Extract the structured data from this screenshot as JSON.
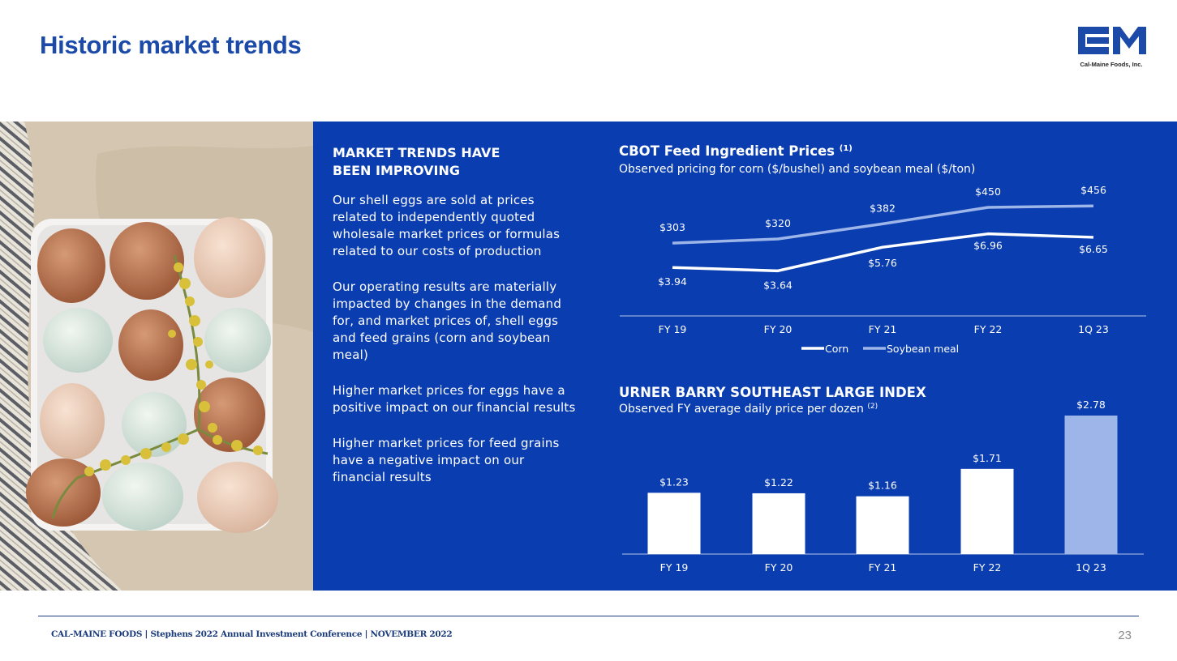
{
  "slide": {
    "title": "Historic market trends",
    "logo_text": "Cal-Maine Foods, Inc.",
    "page_number": "23",
    "footer": "CAL-MAINE FOODS | Stephens 2022 Annual Investment Conference | NOVEMBER 2022"
  },
  "text_column": {
    "heading": "MARKET TRENDS HAVE BEEN IMPROVING",
    "paragraphs": [
      "Our shell eggs are sold at prices related to independently quoted wholesale market prices or formulas related to our costs of production",
      "Our operating results are materially impacted by changes in the demand for, and market prices of, shell eggs and feed grains (corn and soybean meal)",
      "Higher market prices for eggs have a positive impact on our financial results",
      "Higher market prices for feed grains have a negative impact on our financial results"
    ]
  },
  "colors": {
    "panel": "#0a3db0",
    "title": "#1b4aa8",
    "corn": "#ffffff",
    "soybean": "#9db5e8",
    "bar": "#ffffff",
    "bar_highlight": "#9db5e8"
  },
  "chart_data": [
    {
      "type": "line",
      "title": "CBOT Feed Ingredient Prices",
      "title_note": "(1)",
      "subtitle": "Observed pricing for corn ($/bushel) and soybean meal ($/ton)",
      "categories": [
        "FY 19",
        "FY 20",
        "FY 21",
        "FY 22",
        "1Q 23"
      ],
      "series": [
        {
          "name": "Corn",
          "values": [
            3.94,
            3.64,
            5.76,
            6.96,
            6.65
          ],
          "labels": [
            "$3.94",
            "$3.64",
            "$5.76",
            "$6.96",
            "$6.65"
          ],
          "color": "#ffffff"
        },
        {
          "name": "Soybean meal",
          "values": [
            303,
            320,
            382,
            450,
            456
          ],
          "labels": [
            "$303",
            "$320",
            "$382",
            "$450",
            "$456"
          ],
          "color": "#9db5e8"
        }
      ],
      "legend": "bottom",
      "grid": false
    },
    {
      "type": "bar",
      "title": "URNER BARRY SOUTHEAST LARGE INDEX",
      "subtitle": "Observed FY average daily price per dozen",
      "subtitle_note": "(2)",
      "categories": [
        "FY 19",
        "FY 20",
        "FY 21",
        "FY 22",
        "1Q 23"
      ],
      "values": [
        1.23,
        1.22,
        1.16,
        1.71,
        2.78
      ],
      "labels": [
        "$1.23",
        "$1.22",
        "$1.16",
        "$1.71",
        "$2.78"
      ],
      "highlight_index": 4,
      "ylim": [
        0,
        2.78
      ],
      "grid": false
    }
  ]
}
